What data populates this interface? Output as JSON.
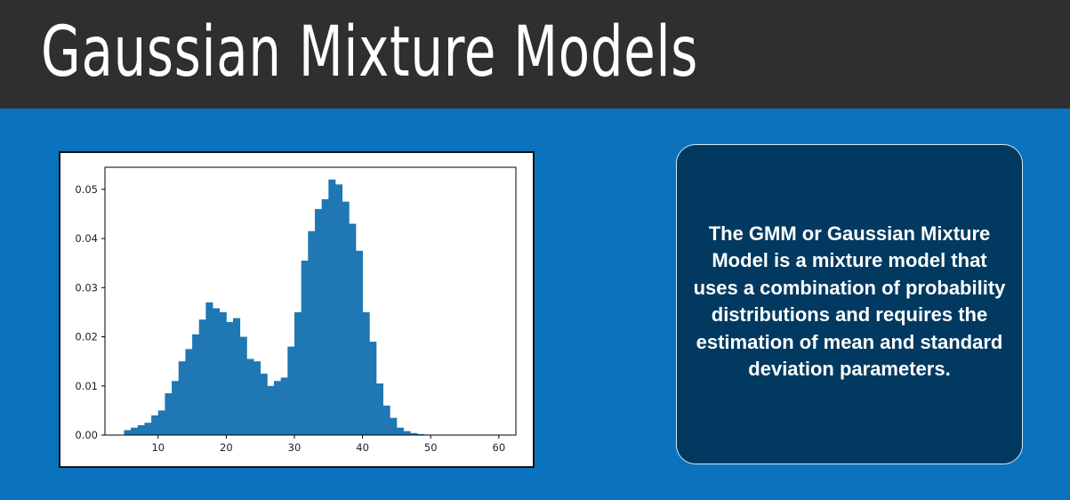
{
  "slide": {
    "title": "Gaussian Mixture Models",
    "description": "The GMM or Gaussian Mixture Model is a mixture model that uses a combination of probability distributions and requires the estimation of mean and standard deviation parameters."
  },
  "colors": {
    "header_bg": "#2f2e31",
    "slide_bg": "#0b72bd",
    "box_bg": "#023960",
    "bar": "#1f77b4"
  },
  "chart_data": {
    "type": "bar",
    "title": "",
    "xlabel": "",
    "ylabel": "",
    "bin_start": 5,
    "bin_width": 1,
    "values": [
      0.001,
      0.0015,
      0.002,
      0.0025,
      0.004,
      0.005,
      0.0085,
      0.011,
      0.015,
      0.0175,
      0.0205,
      0.0235,
      0.027,
      0.0258,
      0.025,
      0.023,
      0.0238,
      0.02,
      0.0155,
      0.015,
      0.0125,
      0.01,
      0.011,
      0.0117,
      0.018,
      0.025,
      0.0355,
      0.0415,
      0.046,
      0.048,
      0.052,
      0.051,
      0.0475,
      0.043,
      0.0375,
      0.025,
      0.019,
      0.0105,
      0.006,
      0.0035,
      0.0015,
      0.0008,
      0.0004,
      0.0002,
      0.0001,
      5e-05
    ],
    "xlim": [
      2.2,
      62.5
    ],
    "ylim": [
      0,
      0.0545
    ],
    "xticks": [
      10,
      20,
      30,
      40,
      50,
      60
    ],
    "yticks": [
      0.0,
      0.01,
      0.02,
      0.03,
      0.04,
      0.05
    ],
    "xtick_labels": [
      "10",
      "20",
      "30",
      "40",
      "50",
      "60"
    ],
    "ytick_labels": [
      "0.00",
      "0.01",
      "0.02",
      "0.03",
      "0.04",
      "0.05"
    ],
    "grid": false,
    "legend": "none"
  }
}
